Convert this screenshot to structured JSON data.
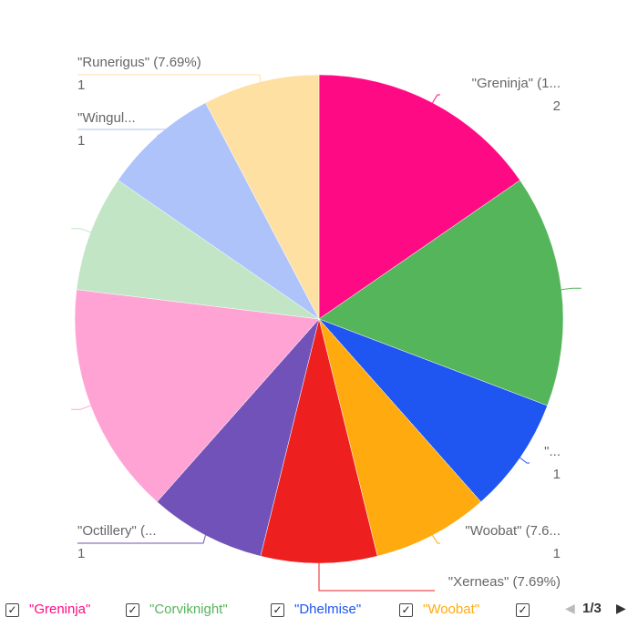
{
  "chart_data": {
    "type": "pie",
    "slices": [
      {
        "name": "\"Greninja\"",
        "value": 2,
        "color": "#ff0a85"
      },
      {
        "name": "\"Corviknight\"",
        "value": 2,
        "color": "#55b55a"
      },
      {
        "name": "\"Dhelmise\"",
        "value": 1,
        "color": "#1f55f0"
      },
      {
        "name": "\"Woobat\"",
        "value": 1,
        "color": "#ffaa0f"
      },
      {
        "name": "\"Xerneas\"",
        "value": 1,
        "color": "#ee1f1f"
      },
      {
        "name": "\"Octillery\"",
        "value": 1,
        "color": "#7152b9"
      },
      {
        "name": "",
        "value": 2,
        "color": "#ffa3d5"
      },
      {
        "name": "",
        "value": 1,
        "color": "#c2e5c5"
      },
      {
        "name": "\"Wingul...",
        "value": 1,
        "color": "#adc3fa"
      },
      {
        "name": "\"Runerigus\"",
        "value": 1,
        "color": "#ffe0a3"
      }
    ]
  },
  "labels": [
    {
      "slice": 0,
      "text": "\"Greninja\" (1...",
      "value": "2"
    },
    {
      "slice": 2,
      "text": "\"...",
      "value": "1"
    },
    {
      "slice": 3,
      "text": "\"Woobat\" (7.6...",
      "value": "1"
    },
    {
      "slice": 4,
      "text": "\"Xerneas\" (7.69%)",
      "value": "1"
    },
    {
      "slice": 5,
      "text": "\"Octillery\" (...",
      "value": "1"
    },
    {
      "slice": 8,
      "text": "\"Wingul...",
      "value": "1"
    },
    {
      "slice": 9,
      "text": "\"Runerigus\" (7.69%)",
      "value": "1"
    }
  ],
  "legend": {
    "items": [
      {
        "label": "\"Greninja\"",
        "color": "#ff0a85",
        "checked": "✓"
      },
      {
        "label": "\"Corviknight\"",
        "color": "#55b55a",
        "checked": "✓"
      },
      {
        "label": "\"Dhelmise\"",
        "color": "#1f55f0",
        "checked": "✓"
      },
      {
        "label": "\"Woobat\"",
        "color": "#ffaa0f",
        "checked": "✓"
      },
      {
        "label": "",
        "color": "#ee1f1f",
        "checked": "✓"
      }
    ],
    "page": "1/3",
    "prev_icon": "◀",
    "next_icon": "▶"
  }
}
